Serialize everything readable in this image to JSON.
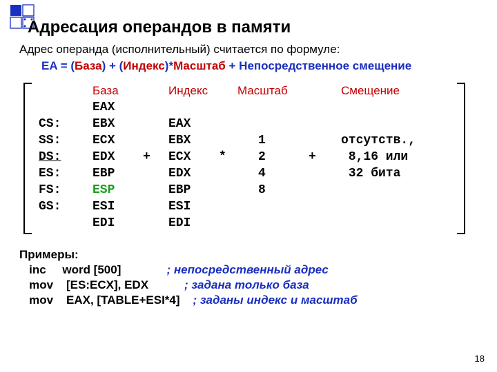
{
  "title": "Адресация операндов в памяти",
  "intro": "Адрес операнда (исполнительный) считается по формуле:",
  "formula": {
    "p1": "EA = (",
    "p2": "База",
    "p3": ") + (",
    "p4": "Индекс",
    "p5": ")*",
    "p6": "Масштаб",
    "p7": " + ",
    "p8": "Непосредственное смещение"
  },
  "headers": {
    "base": "База",
    "index": "Индекс",
    "scale": "Масштаб",
    "offset": "Смещение"
  },
  "rows": [
    {
      "seg": "",
      "base": "EAX",
      "idx": "",
      "scale": "",
      "off": ""
    },
    {
      "seg": "CS:",
      "base": "EBX",
      "idx": "EAX",
      "scale": "",
      "off": ""
    },
    {
      "seg": "SS:",
      "base": "ECX",
      "idx": "EBX",
      "scale": "1",
      "off": "отсутств.,"
    },
    {
      "seg": "DS:",
      "seg_underline": true,
      "base": "EDX",
      "plus": "+",
      "idx": "ECX",
      "star": "*",
      "scale": "2",
      "plus2": "+",
      "off": " 8,16 или"
    },
    {
      "seg": "ES:",
      "base": "EBP",
      "idx": "EDX",
      "scale": "4",
      "off": " 32 бита"
    },
    {
      "seg": "FS:",
      "base": "ESP",
      "base_green": true,
      "idx": "EBP",
      "scale": "8",
      "off": ""
    },
    {
      "seg": "GS:",
      "base": "ESI",
      "idx": "ESI",
      "scale": "",
      "off": ""
    },
    {
      "seg": "",
      "base": "EDI",
      "idx": "EDI",
      "scale": "",
      "off": ""
    }
  ],
  "examples_title": "Примеры:",
  "examples": [
    {
      "code": "   inc     word [500]              ",
      "cmt": "; непосредственный адрес"
    },
    {
      "code": "   mov    [ES:ECX], EDX           ",
      "cmt": "; задана только база"
    },
    {
      "code": "   mov    EAX, [TABLE+ESI*4]    ",
      "cmt": "; заданы индекс и масштаб"
    }
  ],
  "pagenum": "18",
  "colors": {
    "blue": "#1a2fbf",
    "red": "#c20000",
    "green": "#1a9e1a"
  }
}
